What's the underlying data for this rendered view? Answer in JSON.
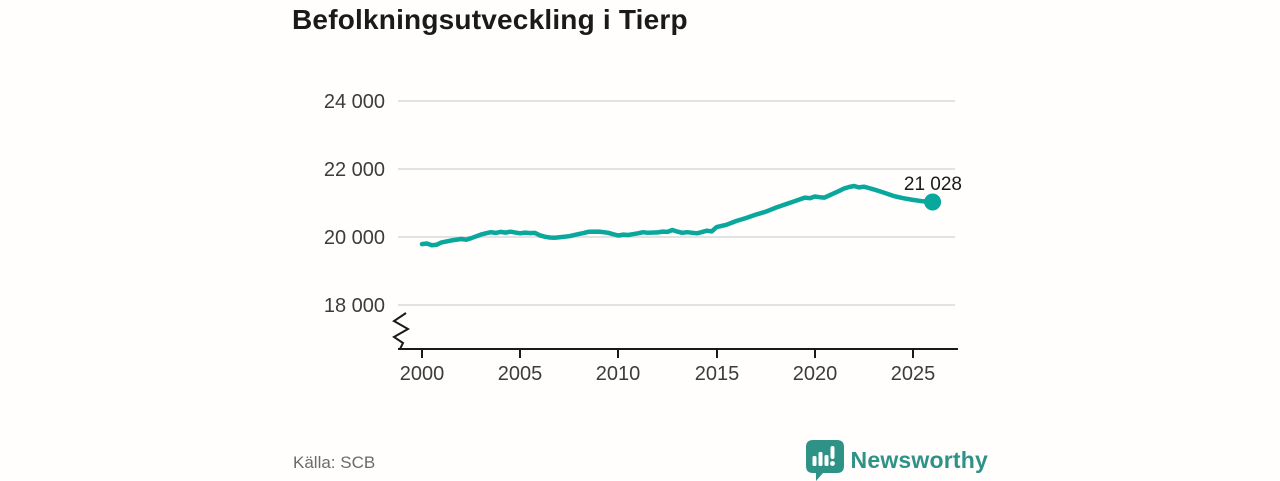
{
  "title": "Befolkningsutveckling i Tierp",
  "source": "Källa: SCB",
  "brand": {
    "name": "Newsworthy",
    "color": "#2f9287",
    "icon": "newsworthy-speech-bubble-bar-chart-icon"
  },
  "chart_data": {
    "type": "line",
    "title": "Befolkningsutveckling i Tierp",
    "xlabel": "",
    "ylabel": "",
    "x_ticks": [
      2000,
      2005,
      2010,
      2015,
      2020,
      2025
    ],
    "x_tick_labels": [
      "2000",
      "2005",
      "2010",
      "2015",
      "2020",
      "2025"
    ],
    "y_ticks_top_down": [
      24000,
      22000,
      20000,
      18000
    ],
    "y_tick_labels": [
      "24 000",
      "22 000",
      "20 000",
      "18 000"
    ],
    "ylim": [
      18000,
      24000
    ],
    "xlim": [
      1998.8,
      2027.3
    ],
    "axis_break_below_y_min": true,
    "grid": "horizontal",
    "legend": "none",
    "line_color": "#0aa79c",
    "end_label": "21 028",
    "end_value": 21028,
    "series": [
      {
        "name": "Befolkning i Tierp",
        "points": [
          [
            2000.0,
            19790
          ],
          [
            2000.25,
            19810
          ],
          [
            2000.5,
            19760
          ],
          [
            2000.75,
            19775
          ],
          [
            2001.0,
            19840
          ],
          [
            2001.25,
            19870
          ],
          [
            2001.5,
            19900
          ],
          [
            2002.0,
            19940
          ],
          [
            2002.25,
            19920
          ],
          [
            2002.5,
            19965
          ],
          [
            2003.0,
            20070
          ],
          [
            2003.25,
            20110
          ],
          [
            2003.5,
            20140
          ],
          [
            2003.75,
            20120
          ],
          [
            2004.0,
            20150
          ],
          [
            2004.25,
            20130
          ],
          [
            2004.5,
            20155
          ],
          [
            2005.0,
            20110
          ],
          [
            2005.25,
            20130
          ],
          [
            2005.5,
            20115
          ],
          [
            2005.75,
            20120
          ],
          [
            2006.0,
            20050
          ],
          [
            2006.25,
            20010
          ],
          [
            2006.5,
            19985
          ],
          [
            2006.75,
            19975
          ],
          [
            2007.0,
            19990
          ],
          [
            2007.5,
            20025
          ],
          [
            2008.0,
            20090
          ],
          [
            2008.25,
            20120
          ],
          [
            2008.5,
            20155
          ],
          [
            2009.0,
            20160
          ],
          [
            2009.25,
            20140
          ],
          [
            2009.5,
            20120
          ],
          [
            2009.75,
            20080
          ],
          [
            2010.0,
            20045
          ],
          [
            2010.25,
            20070
          ],
          [
            2010.5,
            20060
          ],
          [
            2011.0,
            20110
          ],
          [
            2011.25,
            20140
          ],
          [
            2011.5,
            20125
          ],
          [
            2012.0,
            20135
          ],
          [
            2012.25,
            20160
          ],
          [
            2012.5,
            20150
          ],
          [
            2012.75,
            20205
          ],
          [
            2013.0,
            20160
          ],
          [
            2013.25,
            20125
          ],
          [
            2013.5,
            20140
          ],
          [
            2014.0,
            20110
          ],
          [
            2014.25,
            20145
          ],
          [
            2014.5,
            20185
          ],
          [
            2014.75,
            20165
          ],
          [
            2015.0,
            20290
          ],
          [
            2015.5,
            20360
          ],
          [
            2016.0,
            20470
          ],
          [
            2016.5,
            20560
          ],
          [
            2017.0,
            20660
          ],
          [
            2017.25,
            20700
          ],
          [
            2017.5,
            20745
          ],
          [
            2018.0,
            20860
          ],
          [
            2018.5,
            20960
          ],
          [
            2019.0,
            21060
          ],
          [
            2019.25,
            21110
          ],
          [
            2019.5,
            21160
          ],
          [
            2019.75,
            21140
          ],
          [
            2020.0,
            21190
          ],
          [
            2020.25,
            21170
          ],
          [
            2020.5,
            21160
          ],
          [
            2021.0,
            21290
          ],
          [
            2021.25,
            21360
          ],
          [
            2021.5,
            21430
          ],
          [
            2021.75,
            21470
          ],
          [
            2022.0,
            21500
          ],
          [
            2022.25,
            21460
          ],
          [
            2022.5,
            21480
          ],
          [
            2022.75,
            21440
          ],
          [
            2023.0,
            21400
          ],
          [
            2023.5,
            21310
          ],
          [
            2024.0,
            21210
          ],
          [
            2024.5,
            21140
          ],
          [
            2025.0,
            21090
          ],
          [
            2025.5,
            21050
          ],
          [
            2026.0,
            21028
          ]
        ]
      }
    ]
  }
}
